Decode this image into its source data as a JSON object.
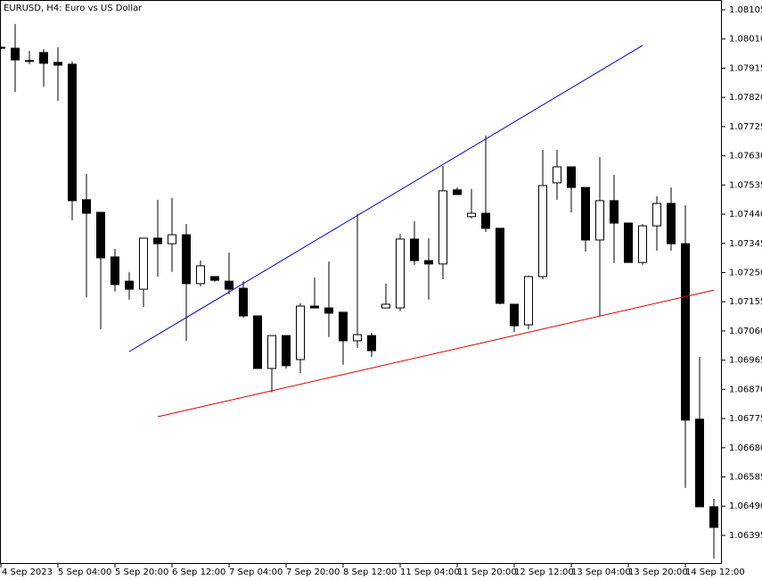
{
  "chart_data": {
    "type": "candlestick",
    "title": "EURUSD, H4:  Euro vs US Dollar",
    "categories": [
      "4 Sep 2023",
      null,
      null,
      null,
      "5 Sep 04:00",
      null,
      null,
      null,
      "5 Sep 20:00",
      null,
      null,
      null,
      "6 Sep 12:00",
      null,
      null,
      null,
      "7 Sep 04:00",
      null,
      null,
      null,
      "7 Sep 20:00",
      null,
      null,
      null,
      "8 Sep 12:00",
      null,
      null,
      null,
      "11 Sep 04:00",
      null,
      null,
      null,
      "11 Sep 20:00",
      null,
      null,
      null,
      "12 Sep 12:00",
      null,
      null,
      null,
      "13 Sep 04:00",
      null,
      null,
      null,
      "13 Sep 20:00",
      null,
      null,
      null,
      "14 Sep 12:00",
      null,
      null
    ],
    "open": [
      1.07983,
      1.0798,
      1.0794,
      1.07966,
      1.07934,
      1.07928,
      1.07487,
      1.07446,
      1.07301,
      1.07222,
      1.07196,
      1.07362,
      1.07344,
      1.07373,
      1.07214,
      1.07237,
      1.07222,
      1.07199,
      1.07109,
      1.06938,
      1.07045,
      1.06967,
      1.07141,
      1.07135,
      1.07121,
      1.07028,
      1.07045,
      1.07135,
      1.07135,
      1.07359,
      1.07289,
      1.07278,
      1.07519,
      1.07432,
      1.07443,
      1.07394,
      1.07147,
      1.0708,
      1.07237,
      1.07542,
      1.07594,
      1.07527,
      1.07356,
      1.07484,
      1.07411,
      1.07283,
      1.07402,
      1.07475,
      1.07344,
      1.06773,
      1.06488
    ],
    "high": [
      1.07986,
      1.08059,
      1.07971,
      1.07977,
      1.07983,
      1.07937,
      1.07571,
      1.07446,
      1.07327,
      1.07252,
      1.07362,
      1.07487,
      1.07492,
      1.07408,
      1.07289,
      1.07237,
      1.07315,
      1.07222,
      1.07109,
      1.07045,
      1.07045,
      1.0715,
      1.07234,
      1.07286,
      1.07121,
      1.0744,
      1.07054,
      1.07214,
      1.07376,
      1.07417,
      1.07362,
      1.07597,
      1.07527,
      1.07522,
      1.07696,
      1.07394,
      1.07147,
      1.0724,
      1.07649,
      1.07649,
      1.07594,
      1.07527,
      1.07626,
      1.07568,
      1.07411,
      1.07408,
      1.07498,
      1.07527,
      1.07469,
      1.06976,
      1.06514
    ],
    "low": [
      1.07977,
      1.07838,
      1.07928,
      1.07855,
      1.07809,
      1.0742,
      1.0717,
      1.07066,
      1.07188,
      1.07162,
      1.07138,
      1.07237,
      1.07252,
      1.07028,
      1.07205,
      1.0722,
      1.07179,
      1.07103,
      1.06938,
      1.0686,
      1.06938,
      1.06923,
      1.07135,
      1.0704,
      1.0695,
      1.07005,
      1.06976,
      1.07135,
      1.07124,
      1.07275,
      1.07162,
      1.07228,
      1.07504,
      1.07426,
      1.07382,
      1.07147,
      1.07057,
      1.07066,
      1.07228,
      1.07487,
      1.07446,
      1.07318,
      1.07109,
      1.07281,
      1.07283,
      1.07275,
      1.07321,
      1.07321,
      1.06549,
      1.06488,
      1.0632
    ],
    "close": [
      1.0798,
      1.07942,
      1.07937,
      1.07931,
      1.07925,
      1.07484,
      1.07443,
      1.07298,
      1.07211,
      1.07196,
      1.07362,
      1.07344,
      1.07373,
      1.07214,
      1.07272,
      1.07225,
      1.07196,
      1.07109,
      1.06938,
      1.07045,
      1.06947,
      1.07141,
      1.07135,
      1.07118,
      1.07028,
      1.07048,
      1.06996,
      1.07147,
      1.07359,
      1.07289,
      1.07278,
      1.07516,
      1.07504,
      1.07443,
      1.07394,
      1.0715,
      1.07077,
      1.07237,
      1.07533,
      1.07594,
      1.07527,
      1.07356,
      1.07484,
      1.07411,
      1.07283,
      1.07402,
      1.07475,
      1.07344,
      1.0677,
      1.06488,
      1.06421
    ],
    "up_color": "#ffffff",
    "down_color": "#000000",
    "ylim": [
      1.06302,
      1.08134
    ],
    "yticks": [
      1.08105,
      {
        "value": 1.0801,
        "label": "1.08010"
      },
      1.07915,
      {
        "value": 1.0782,
        "label": "1.07820"
      },
      1.07725,
      {
        "value": 1.0763,
        "label": "1.07630"
      },
      1.07535,
      {
        "value": 1.0744,
        "label": "1.07440"
      },
      1.07345,
      {
        "value": 1.0725,
        "label": "1.07250"
      },
      1.07155,
      {
        "value": 1.0706,
        "label": "1.07060"
      },
      1.06965,
      {
        "value": 1.0687,
        "label": "1.06870"
      },
      1.06775,
      {
        "value": 1.0668,
        "label": "1.06680"
      },
      1.06585,
      {
        "value": 1.0649,
        "label": "1.06490"
      },
      1.06395
    ],
    "trendlines": [
      {
        "color": "#0000cc",
        "start": [
          9,
          1.06993
        ],
        "end": [
          45,
          1.07989
        ]
      },
      {
        "color": "#dd0000",
        "start": [
          11,
          1.06781
        ],
        "end": [
          50,
          1.07193
        ]
      }
    ]
  }
}
